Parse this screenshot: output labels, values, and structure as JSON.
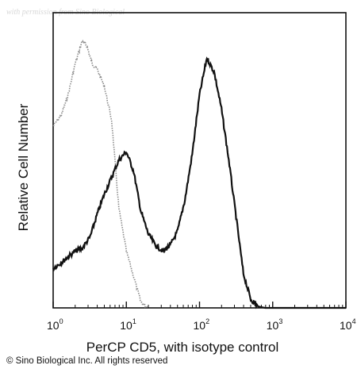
{
  "watermark": "with permission from Sino Biological",
  "copyright": "© Sino Biological Inc. All rights reserved",
  "chart_data": {
    "type": "line",
    "title": "",
    "xlabel": "PerCP CD5, with isotype control",
    "ylabel": "Relative Cell Number",
    "x_scale": "log",
    "xlim": [
      1,
      10000
    ],
    "x_ticks": [
      {
        "base": "10",
        "exp": "0"
      },
      {
        "base": "10",
        "exp": "1"
      },
      {
        "base": "10",
        "exp": "2"
      },
      {
        "base": "10",
        "exp": "3"
      },
      {
        "base": "10",
        "exp": "4"
      }
    ],
    "ylim": [
      0,
      100
    ],
    "y_ticks_labeled": false,
    "grid": false,
    "legend": "none",
    "series": [
      {
        "style": "dotted-gray",
        "color": "#8a8a8a",
        "x": [
          1.0,
          1.3,
          1.6,
          2.0,
          2.5,
          2.9,
          3.4,
          4.0,
          5.0,
          6.3,
          7.9,
          10.0,
          12.6,
          15.8,
          20.0
        ],
        "y": [
          64,
          68,
          75,
          86,
          94,
          92,
          86,
          84,
          78,
          66,
          35,
          20,
          11,
          2,
          0
        ]
      },
      {
        "style": "solid-black",
        "color": "#111111",
        "x": [
          1.0,
          1.3,
          1.6,
          2.0,
          2.5,
          3.2,
          4.0,
          5.0,
          6.3,
          7.9,
          10.0,
          12.6,
          15.8,
          20.0,
          25.1,
          31.6,
          39.8,
          50.1,
          63.1,
          79.4,
          100.0,
          125.9,
          158.5,
          199.5,
          251.2,
          316.2,
          398.1,
          501.2,
          631.0,
          794.3,
          1000,
          1500,
          2500,
          5000,
          10000
        ],
        "y": [
          14,
          16,
          18,
          20,
          21,
          25,
          33,
          40,
          46,
          52,
          55,
          48,
          34,
          26,
          22,
          20,
          22,
          27,
          38,
          54,
          75,
          88,
          83,
          70,
          52,
          32,
          12,
          3,
          0.5,
          0,
          0,
          0,
          0,
          0,
          0
        ]
      }
    ]
  }
}
